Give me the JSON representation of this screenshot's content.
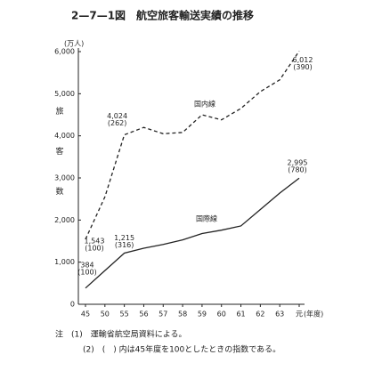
{
  "chart_data": {
    "type": "line",
    "title": "2—7—1図　航空旅客輸送実績の推移",
    "y_unit": "(万人)",
    "y_label": "旅客数",
    "x_unit": "(年度)",
    "categories": [
      "45",
      "50",
      "55",
      "56",
      "57",
      "58",
      "59",
      "60",
      "61",
      "62",
      "63",
      "元"
    ],
    "ylim": [
      0,
      6000
    ],
    "yticks": [
      0,
      {
        "value": 1000,
        "label": "1,000"
      },
      {
        "value": 2000,
        "label": "2,000"
      },
      {
        "value": 3000,
        "label": "3,000"
      },
      {
        "value": 4000,
        "label": "4,000"
      },
      {
        "value": 5000,
        "label": "5,000"
      },
      {
        "value": 6000,
        "label": "6,000"
      }
    ],
    "series": [
      {
        "name": "国内線",
        "color": "#222",
        "dashed": true,
        "values": [
          1543,
          2550,
          4024,
          4200,
          4050,
          4080,
          4500,
          4380,
          4650,
          5050,
          5330,
          6012
        ],
        "value_labels": [
          "1,543",
          null,
          "4,024",
          null,
          null,
          null,
          null,
          null,
          null,
          null,
          null,
          "6,012"
        ],
        "index_labels": [
          "(100)",
          null,
          "(262)",
          null,
          null,
          null,
          null,
          null,
          null,
          null,
          null,
          "(390)"
        ]
      },
      {
        "name": "国際線",
        "color": "#222",
        "dashed": false,
        "values": [
          384,
          800,
          1215,
          1330,
          1420,
          1530,
          1680,
          1760,
          1860,
          2250,
          2640,
          2995
        ],
        "value_labels": [
          "384",
          null,
          "1,215",
          null,
          null,
          null,
          null,
          null,
          null,
          null,
          null,
          "2,995"
        ],
        "index_labels": [
          "(100)",
          null,
          "(316)",
          null,
          null,
          null,
          null,
          null,
          null,
          null,
          null,
          "(780)"
        ]
      }
    ],
    "notes": [
      "注　(1)　運輸省航空局資料による。",
      "(2)　(　) 内は45年度を100としたときの指数である。"
    ]
  }
}
